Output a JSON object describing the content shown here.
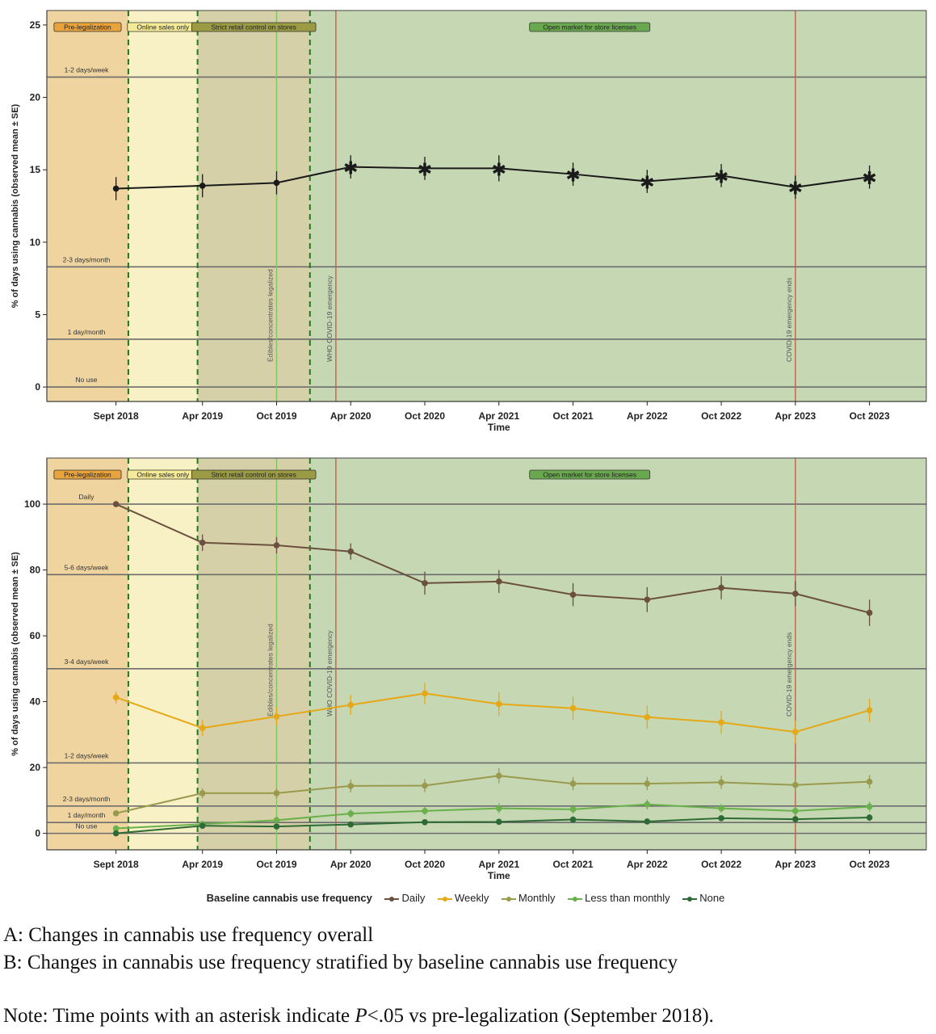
{
  "legend": {
    "title": "Baseline cannabis use frequency",
    "items": [
      {
        "label": "Daily",
        "color": "#6b4f3f"
      },
      {
        "label": "Weekly",
        "color": "#e6a817"
      },
      {
        "label": "Monthly",
        "color": "#9a9a4e"
      },
      {
        "label": "Less than monthly",
        "color": "#6ab04c"
      },
      {
        "label": "None",
        "color": "#2e6b34"
      }
    ]
  },
  "captions": {
    "a": "A: Changes in cannabis use frequency overall",
    "b": "B: Changes in cannabis use frequency stratified by baseline cannabis use frequency",
    "note_pre": "Note: Time points with an asterisk indicate ",
    "note_p": "P",
    "note_post": "<.05 vs pre-legalization (September 2018)."
  },
  "chart_data": [
    {
      "panel": "A",
      "type": "line",
      "ylabel": "% of days using cannabis (observed mean ± SE)",
      "xlabel": "Time",
      "ylim": [
        -1,
        26
      ],
      "yticks": [
        0,
        5,
        10,
        15,
        20,
        25
      ],
      "ticks": [
        {
          "label": "Sept 2018",
          "x": 0
        },
        {
          "label": "Apr 2019",
          "x": 7
        },
        {
          "label": "Oct 2019",
          "x": 13
        },
        {
          "label": "Apr 2020",
          "x": 19
        },
        {
          "label": "Oct 2020",
          "x": 25
        },
        {
          "label": "Apr 2021",
          "x": 31
        },
        {
          "label": "Oct 2021",
          "x": 37
        },
        {
          "label": "Apr 2022",
          "x": 43
        },
        {
          "label": "Oct 2022",
          "x": 49
        },
        {
          "label": "Apr 2023",
          "x": 55
        },
        {
          "label": "Oct 2023",
          "x": 61
        }
      ],
      "xlim": [
        -5.6,
        65.6
      ],
      "regions": [
        {
          "label": "Pre-legalization",
          "x0": -5.6,
          "x1": 1,
          "color": "#f0d4a0",
          "badge": "#e8a33d"
        },
        {
          "label": "Online sales only",
          "x0": 1,
          "x1": 6.6,
          "color": "#f8f1c6",
          "badge": "#f5ea98"
        },
        {
          "label": "Strict retail control on stores",
          "x0": 6.6,
          "x1": 15.7,
          "color": "#d6d0a8",
          "badge": "#9b9a45"
        },
        {
          "label": "Open market for store licenses",
          "x0": 15.7,
          "x1": 65.6,
          "color": "#c5d8b3",
          "badge": "#6aa84f"
        }
      ],
      "reference_lines": [
        {
          "label": "1-2 days/week",
          "y": 21.4
        },
        {
          "label": "2-3 days/month",
          "y": 8.3
        },
        {
          "label": "1 day/month",
          "y": 3.3
        },
        {
          "label": "No use",
          "y": 0
        }
      ],
      "events": [
        {
          "label": "Edibles/concentrates legalized",
          "x": 13,
          "color": "#7dc862"
        },
        {
          "label": "WHO COVID-19 emergency",
          "x": 17.8,
          "color": "#c0634a"
        },
        {
          "label": "COVID-19 emergency ends",
          "x": 55,
          "color": "#c0634a"
        }
      ],
      "dividers": [
        1,
        6.6,
        15.7
      ],
      "series": [
        {
          "color": "#1a1a1a",
          "x": [
            0,
            7,
            13,
            19,
            25,
            31,
            37,
            43,
            49,
            55,
            61
          ],
          "values": [
            13.7,
            13.9,
            14.1,
            15.2,
            15.1,
            15.1,
            14.7,
            14.2,
            14.6,
            13.8,
            14.5
          ],
          "se": [
            0.8,
            0.8,
            0.8,
            0.8,
            0.8,
            0.9,
            0.8,
            0.8,
            0.8,
            0.8,
            0.8
          ],
          "significant": [
            false,
            false,
            false,
            true,
            true,
            true,
            true,
            true,
            true,
            true,
            true
          ]
        }
      ]
    },
    {
      "panel": "B",
      "type": "line",
      "ylabel": "% of days using cannabis (observed mean ± SE)",
      "xlabel": "Time",
      "ylim": [
        -5,
        114
      ],
      "yticks": [
        0,
        20,
        40,
        60,
        80,
        100
      ],
      "ticks": [
        {
          "label": "Sept 2018",
          "x": 0
        },
        {
          "label": "Apr 2019",
          "x": 7
        },
        {
          "label": "Oct 2019",
          "x": 13
        },
        {
          "label": "Apr 2020",
          "x": 19
        },
        {
          "label": "Oct 2020",
          "x": 25
        },
        {
          "label": "Apr 2021",
          "x": 31
        },
        {
          "label": "Oct 2021",
          "x": 37
        },
        {
          "label": "Apr 2022",
          "x": 43
        },
        {
          "label": "Oct 2022",
          "x": 49
        },
        {
          "label": "Apr 2023",
          "x": 55
        },
        {
          "label": "Oct 2023",
          "x": 61
        }
      ],
      "xlim": [
        -5.6,
        65.6
      ],
      "regions": [
        {
          "label": "Pre-legalization",
          "x0": -5.6,
          "x1": 1,
          "color": "#f0d4a0",
          "badge": "#e8a33d"
        },
        {
          "label": "Online sales only",
          "x0": 1,
          "x1": 6.6,
          "color": "#f8f1c6",
          "badge": "#f5ea98"
        },
        {
          "label": "Strict retail control on stores",
          "x0": 6.6,
          "x1": 15.7,
          "color": "#d6d0a8",
          "badge": "#9b9a45"
        },
        {
          "label": "Open market for store licenses",
          "x0": 15.7,
          "x1": 65.6,
          "color": "#c5d8b3",
          "badge": "#6aa84f"
        }
      ],
      "reference_lines": [
        {
          "label": "Daily",
          "y": 100
        },
        {
          "label": "5-6 days/week",
          "y": 78.6
        },
        {
          "label": "3-4 days/week",
          "y": 50
        },
        {
          "label": "1-2 days/week",
          "y": 21.4
        },
        {
          "label": "2-3 days/month",
          "y": 8.3
        },
        {
          "label": "1 day/month",
          "y": 3.3
        },
        {
          "label": "No use",
          "y": 0
        }
      ],
      "events": [
        {
          "label": "Edibles/concentrates legalized",
          "x": 13,
          "color": "#7dc862"
        },
        {
          "label": "WHO COVID-19 emergency",
          "x": 17.8,
          "color": "#c0634a"
        },
        {
          "label": "COVID-19 emergency ends",
          "x": 55,
          "color": "#c0634a"
        }
      ],
      "dividers": [
        1,
        6.6,
        15.7
      ],
      "series": [
        {
          "name": "Daily",
          "color": "#6b4f3f",
          "x": [
            0,
            7,
            13,
            19,
            25,
            31,
            37,
            43,
            49,
            55,
            61
          ],
          "values": [
            100,
            88.3,
            87.5,
            85.6,
            76,
            76.5,
            72.5,
            71,
            74.6,
            72.8,
            67
          ],
          "se": [
            0,
            2.5,
            2.5,
            2.5,
            3.5,
            3.5,
            3.5,
            3.8,
            3.5,
            3.8,
            4
          ]
        },
        {
          "name": "Weekly",
          "color": "#e6a817",
          "x": [
            0,
            7,
            13,
            19,
            25,
            31,
            37,
            43,
            49,
            55,
            61
          ],
          "values": [
            41.3,
            32,
            35.5,
            39,
            42.5,
            39.3,
            38,
            35.3,
            33.7,
            30.8,
            37.4
          ],
          "se": [
            1.8,
            2.5,
            2.8,
            3,
            3.3,
            3.5,
            3.5,
            3.5,
            3.5,
            3.5,
            3.5
          ]
        },
        {
          "name": "Monthly",
          "color": "#9a9a4e",
          "x": [
            0,
            7,
            13,
            19,
            25,
            31,
            37,
            43,
            49,
            55,
            61
          ],
          "values": [
            6.1,
            12.2,
            12.2,
            14.4,
            14.5,
            17.5,
            15.1,
            15.1,
            15.5,
            14.7,
            15.7
          ],
          "se": [
            0.5,
            1.5,
            1.5,
            2,
            2,
            2.3,
            2,
            2,
            2,
            2,
            2
          ]
        },
        {
          "name": "Less than monthly",
          "color": "#6ab04c",
          "x": [
            0,
            7,
            13,
            19,
            25,
            31,
            37,
            43,
            49,
            55,
            61
          ],
          "values": [
            1.5,
            2.8,
            4,
            6,
            6.8,
            7.6,
            7.3,
            8.8,
            7.6,
            6.8,
            8.1
          ],
          "se": [
            0.5,
            1,
            1,
            1.2,
            1.2,
            1.5,
            1.3,
            1.5,
            1.3,
            1.3,
            1.5
          ]
        },
        {
          "name": "None",
          "color": "#2e6b34",
          "x": [
            0,
            7,
            13,
            19,
            25,
            31,
            37,
            43,
            49,
            55,
            61
          ],
          "values": [
            0,
            2.3,
            2.1,
            2.7,
            3.4,
            3.5,
            4.2,
            3.6,
            4.6,
            4.3,
            4.8
          ],
          "se": [
            0,
            0.7,
            0.7,
            0.8,
            0.8,
            0.8,
            0.9,
            0.8,
            0.9,
            0.9,
            1
          ]
        }
      ]
    }
  ]
}
